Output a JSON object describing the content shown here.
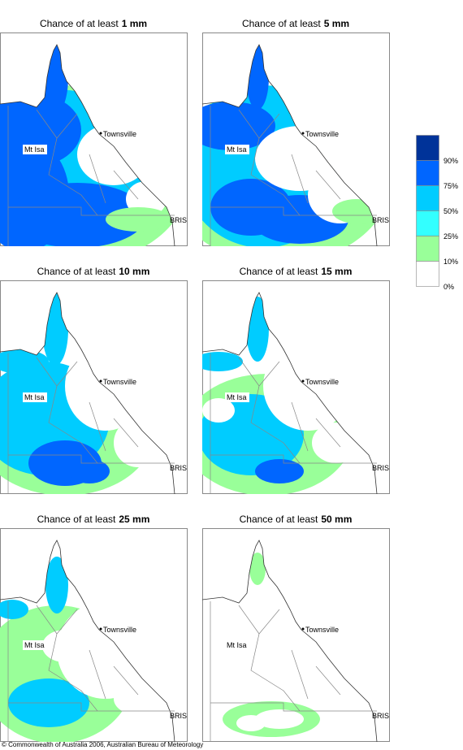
{
  "panels": [
    {
      "title": "Chance of at least",
      "amount": "1 mm"
    },
    {
      "title": "Chance of at least",
      "amount": "5 mm"
    },
    {
      "title": "Chance of at least",
      "amount": "10 mm"
    },
    {
      "title": "Chance of at least",
      "amount": "15 mm"
    },
    {
      "title": "Chance of at least",
      "amount": "25 mm"
    },
    {
      "title": "Chance of at least",
      "amount": "50 mm"
    }
  ],
  "places": {
    "townsville": "Townsville",
    "mt_isa": "Mt Isa",
    "brisbane": "BRIS"
  },
  "legend": {
    "labels": [
      "90%",
      "75%",
      "50%",
      "25%",
      "10%",
      "0%"
    ]
  },
  "copyright": "© Commonwealth of Australia 2006, Australian Bureau of Meteorology"
}
